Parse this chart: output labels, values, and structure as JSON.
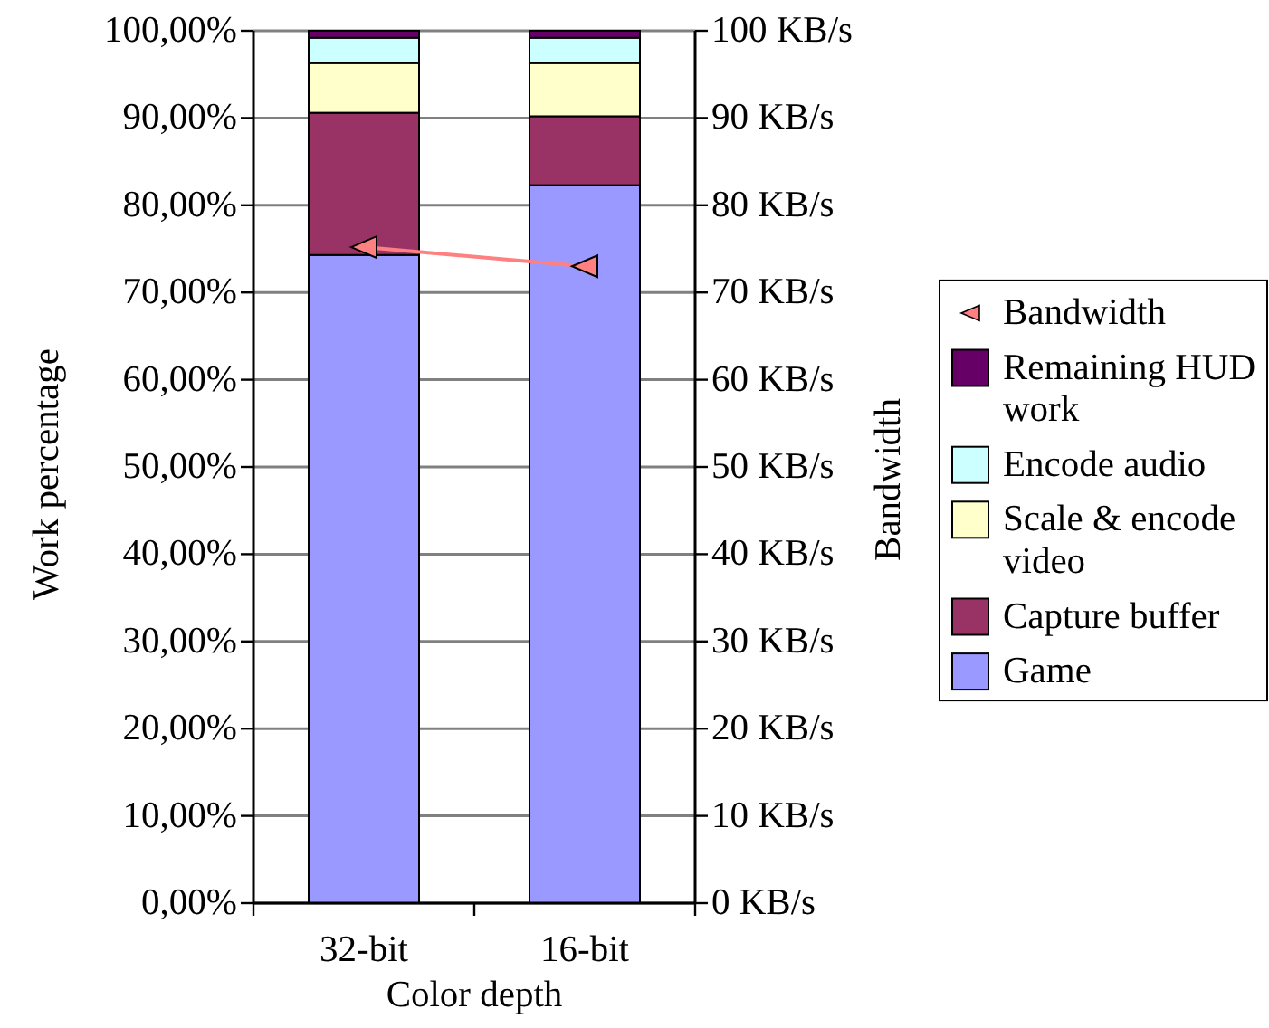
{
  "chart_data": {
    "type": "bar",
    "stacked": true,
    "xlabel": "Color depth",
    "ylabel": "Work percentage",
    "y2label": "Bandwidth",
    "categories": [
      "32-bit",
      "16-bit"
    ],
    "series": [
      {
        "name": "Game",
        "color": "#9999ff",
        "values": [
          74.3,
          82.3
        ]
      },
      {
        "name": "Capture buffer",
        "color": "#993366",
        "values": [
          16.3,
          7.9
        ]
      },
      {
        "name": "Scale & encode video",
        "color": "#ffffcc",
        "values": [
          5.7,
          6.1
        ]
      },
      {
        "name": "Encode audio",
        "color": "#ccffff",
        "values": [
          2.9,
          2.9
        ]
      },
      {
        "name": "Remaining HUD work",
        "color": "#660066",
        "values": [
          0.8,
          0.8
        ]
      },
      {
        "name": "Bandwidth",
        "type": "line",
        "axis": "y2",
        "marker": "triangle",
        "color": "#ff8080",
        "values": [
          75.2,
          73.0
        ]
      }
    ],
    "ylim": [
      0,
      100
    ],
    "yticks": [
      {
        "value": 0,
        "label": "0,00%"
      },
      {
        "value": 10,
        "label": "10,00%"
      },
      {
        "value": 20,
        "label": "20,00%"
      },
      {
        "value": 30,
        "label": "30,00%"
      },
      {
        "value": 40,
        "label": "40,00%"
      },
      {
        "value": 50,
        "label": "50,00%"
      },
      {
        "value": 60,
        "label": "60,00%"
      },
      {
        "value": 70,
        "label": "70,00%"
      },
      {
        "value": 80,
        "label": "80,00%"
      },
      {
        "value": 90,
        "label": "90,00%"
      },
      {
        "value": 100,
        "label": "100,00%"
      }
    ],
    "y2lim": [
      0,
      100
    ],
    "y2ticks": [
      {
        "value": 0,
        "label": "0 KB/s"
      },
      {
        "value": 10,
        "label": "10 KB/s"
      },
      {
        "value": 20,
        "label": "20 KB/s"
      },
      {
        "value": 30,
        "label": "30 KB/s"
      },
      {
        "value": 40,
        "label": "40 KB/s"
      },
      {
        "value": 50,
        "label": "50 KB/s"
      },
      {
        "value": 60,
        "label": "60 KB/s"
      },
      {
        "value": 70,
        "label": "70 KB/s"
      },
      {
        "value": 80,
        "label": "80 KB/s"
      },
      {
        "value": 90,
        "label": "90 KB/s"
      },
      {
        "value": 100,
        "label": "100 KB/s"
      }
    ],
    "grid": "y",
    "legend": "right"
  }
}
